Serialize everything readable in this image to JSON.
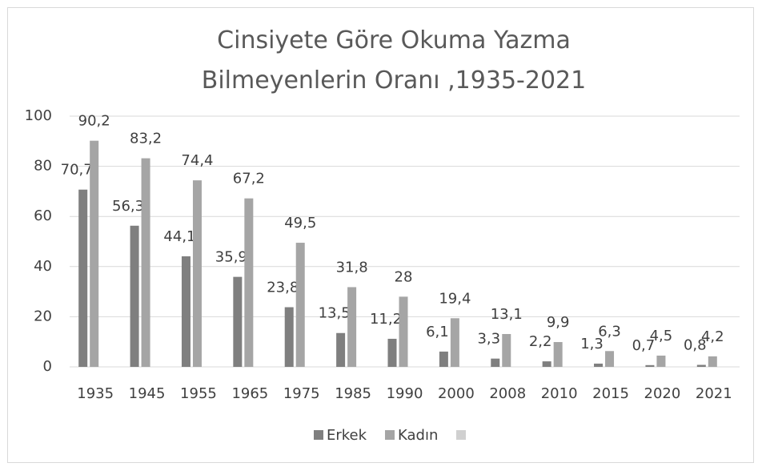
{
  "chart_data": {
    "type": "bar",
    "title": "Cinsiyete Göre Okuma Yazma Bilmeyenlerin Oranı ,1935-2021",
    "categories": [
      "1935",
      "1945",
      "1955",
      "1965",
      "1975",
      "1985",
      "1990",
      "2000",
      "2008",
      "2010",
      "2015",
      "2020",
      "2021"
    ],
    "series": [
      {
        "name": "Erkek",
        "color": "#7f7f7f",
        "values": [
          70.7,
          56.3,
          44.1,
          35.9,
          23.8,
          13.5,
          11.2,
          6.1,
          3.3,
          2.2,
          1.3,
          0.7,
          0.8
        ],
        "value_labels": [
          "70,7",
          "56,3",
          "44,1",
          "35,9",
          "23,8",
          "13,5",
          "11,2",
          "6,1",
          "3,3",
          "2,2",
          "1,3",
          "0,7",
          "0,8"
        ]
      },
      {
        "name": "Kadın",
        "color": "#a5a5a5",
        "values": [
          90.2,
          83.2,
          74.4,
          67.2,
          49.5,
          31.8,
          28,
          19.4,
          13.1,
          9.9,
          6.3,
          4.5,
          4.2
        ],
        "value_labels": [
          "90,2",
          "83,2",
          "74,4",
          "67,2",
          "49,5",
          "31,8",
          "28",
          "19,4",
          "13,1",
          "9,9",
          "6,3",
          "4,5",
          "4,2"
        ]
      }
    ],
    "ylim": [
      0,
      100
    ],
    "yticks": [
      0,
      20,
      40,
      60,
      80,
      100
    ],
    "grid": true,
    "legend": "bottom"
  }
}
